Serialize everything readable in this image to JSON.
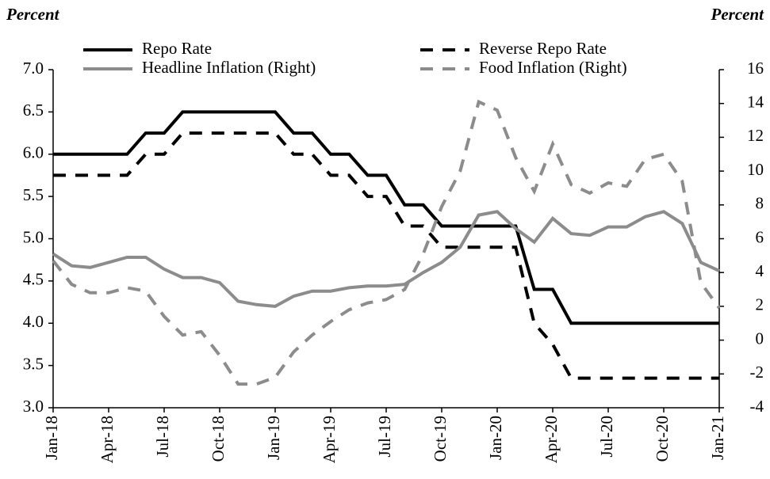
{
  "chart_data": {
    "type": "line",
    "y_label": "Percent",
    "y2_label": "Percent",
    "categories": [
      "Jan-18",
      null,
      null,
      "Apr-18",
      null,
      null,
      "Jul-18",
      null,
      null,
      "Oct-18",
      null,
      null,
      "Jan-19",
      null,
      null,
      "Apr-19",
      null,
      null,
      "Jul-19",
      null,
      null,
      "Oct-19",
      null,
      null,
      "Jan-20",
      null,
      null,
      "Apr-20",
      null,
      null,
      "Jul-20",
      null,
      null,
      "Oct-20",
      null,
      null,
      "Jan-21"
    ],
    "series": [
      {
        "name": "Repo Rate",
        "color": "#000000",
        "style": "solid",
        "axis": "y",
        "values": [
          6.0,
          6.0,
          6.0,
          6.0,
          6.0,
          6.25,
          6.25,
          6.5,
          6.5,
          6.5,
          6.5,
          6.5,
          6.5,
          6.25,
          6.25,
          6.0,
          6.0,
          5.75,
          5.75,
          5.4,
          5.4,
          5.15,
          5.15,
          5.15,
          5.15,
          5.15,
          4.4,
          4.4,
          4.0,
          4.0,
          4.0,
          4.0,
          4.0,
          4.0,
          4.0,
          4.0,
          4.0
        ]
      },
      {
        "name": "Reverse Repo Rate",
        "color": "#000000",
        "style": "dashed",
        "axis": "y",
        "values": [
          5.75,
          5.75,
          5.75,
          5.75,
          5.75,
          6.0,
          6.0,
          6.25,
          6.25,
          6.25,
          6.25,
          6.25,
          6.25,
          6.0,
          6.0,
          5.75,
          5.75,
          5.5,
          5.5,
          5.15,
          5.15,
          4.9,
          4.9,
          4.9,
          4.9,
          4.9,
          4.0,
          3.75,
          3.35,
          3.35,
          3.35,
          3.35,
          3.35,
          3.35,
          3.35,
          3.35,
          3.35
        ]
      },
      {
        "name": "Headline Inflation (Right)",
        "color": "#8c8c8c",
        "style": "solid",
        "axis": "y2",
        "values": [
          5.1,
          4.4,
          4.3,
          4.6,
          4.9,
          4.9,
          4.2,
          3.7,
          3.7,
          3.4,
          2.3,
          2.1,
          2.0,
          2.6,
          2.9,
          2.9,
          3.1,
          3.2,
          3.2,
          3.3,
          4.0,
          4.6,
          5.5,
          7.4,
          7.6,
          6.6,
          5.8,
          7.2,
          6.3,
          6.2,
          6.7,
          6.7,
          7.3,
          7.6,
          6.9,
          4.6,
          4.1
        ]
      },
      {
        "name": "Food Inflation (Right)",
        "color": "#8c8c8c",
        "style": "dashed",
        "axis": "y2",
        "values": [
          4.7,
          3.3,
          2.8,
          2.8,
          3.1,
          2.9,
          1.4,
          0.3,
          0.5,
          -0.9,
          -2.6,
          -2.6,
          -2.2,
          -0.7,
          0.3,
          1.1,
          1.8,
          2.2,
          2.4,
          3.0,
          5.1,
          7.9,
          10.0,
          14.1,
          13.6,
          10.8,
          8.8,
          11.6,
          9.2,
          8.7,
          9.3,
          9.1,
          10.7,
          11.0,
          9.4,
          3.4,
          1.9
        ]
      }
    ],
    "ylim": [
      3,
      7
    ],
    "yticks": [
      {
        "value": 3,
        "label": "3.0"
      },
      {
        "value": 3.5,
        "label": "3.5"
      },
      {
        "value": 4,
        "label": "4.0"
      },
      {
        "value": 4.5,
        "label": "4.5"
      },
      {
        "value": 5,
        "label": "5.0"
      },
      {
        "value": 5.5,
        "label": "5.5"
      },
      {
        "value": 6,
        "label": "6.0"
      },
      {
        "value": 6.5,
        "label": "6.5"
      },
      {
        "value": 7,
        "label": "7.0"
      }
    ],
    "y2lim": [
      -4,
      16
    ],
    "y2ticks": [
      -4,
      -2,
      0,
      2,
      4,
      6,
      8,
      10,
      12,
      14,
      16
    ],
    "grid": false
  }
}
